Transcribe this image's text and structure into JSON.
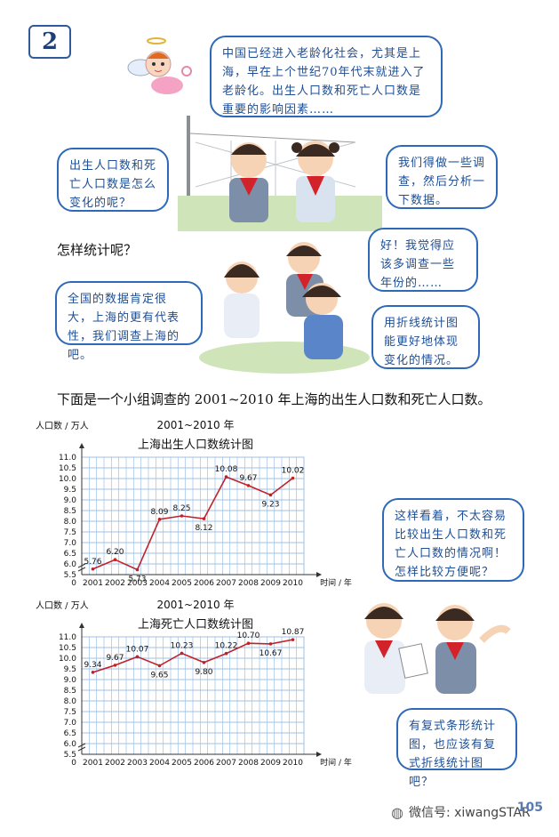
{
  "section_badge": "2",
  "bubbles": {
    "angel": "中国已经进入老龄化社会，尤其是上海，早在上个世纪70年代末就进入了老龄化。出生人口数和死亡人口数是重要的影响因素……",
    "boy_question": "出生人口数和死亡人口数是怎么变化的呢？",
    "girl_survey": "我们得做一些调查，然后分析一下数据。",
    "boy_years": "好！我觉得应该多调查一些年份的……",
    "girl_shanghai": "全国的数据肯定很大，上海的更有代表性，我们调查上海的吧。",
    "girl_line": "用折线统计图能更好地体现变化的情况。",
    "boy_compare": "这样看着，不太容易比较出生人口数和死亡人口数的情况啊！怎样比较方便呢？",
    "boy_compound": "有复式条形统计图，也应该有复式折线统计图吧？"
  },
  "question": "怎样统计呢？",
  "intro": "下面是一个小组调查的 2001~2010 年上海的出生人口数和死亡人口数。",
  "charts": [
    {
      "id": "birth",
      "title_line1": "2001~2010 年",
      "title_line2": "上海出生人口数统计图",
      "ylabel": "人口数 / 万人",
      "xlabel": "时间 / 年",
      "origin": "0",
      "chart_data": {
        "type": "line",
        "categories": [
          "2001",
          "2002",
          "2003",
          "2004",
          "2005",
          "2006",
          "2007",
          "2008",
          "2009",
          "2010"
        ],
        "values": [
          5.76,
          6.2,
          5.73,
          8.09,
          8.25,
          8.12,
          10.08,
          9.67,
          9.23,
          10.02
        ],
        "value_labels": [
          "5.76",
          "6.20",
          "5.73",
          "8.09",
          "8.25",
          "8.12",
          "10.08",
          "9.67",
          "9.23",
          "10.02"
        ],
        "yticks": [
          "5.5",
          "6.0",
          "6.5",
          "7.0",
          "7.5",
          "8.0",
          "8.5",
          "9.0",
          "9.5",
          "10.0",
          "10.5",
          "11.0"
        ],
        "ylim": [
          5.5,
          11.0
        ]
      }
    },
    {
      "id": "death",
      "title_line1": "2001~2010 年",
      "title_line2": "上海死亡人口数统计图",
      "ylabel": "人口数 / 万人",
      "xlabel": "时间 / 年",
      "origin": "0",
      "chart_data": {
        "type": "line",
        "categories": [
          "2001",
          "2002",
          "2003",
          "2004",
          "2005",
          "2006",
          "2007",
          "2008",
          "2009",
          "2010"
        ],
        "values": [
          9.34,
          9.67,
          10.07,
          9.65,
          10.23,
          9.8,
          10.22,
          10.7,
          10.67,
          10.87
        ],
        "value_labels": [
          "9.34",
          "9.67",
          "10.07",
          "9.65",
          "10.23",
          "9.80",
          "10.22",
          "10.70",
          "10.67",
          "10.87"
        ],
        "yticks": [
          "5.5",
          "6.0",
          "6.5",
          "7.0",
          "7.5",
          "8.0",
          "8.5",
          "9.0",
          "9.5",
          "10.0",
          "10.5",
          "11.0"
        ],
        "ylim": [
          5.5,
          11.0
        ]
      }
    }
  ],
  "watermark": "微信号: xiwangSTAR",
  "page_number": "105",
  "colors": {
    "line": "#c0222a",
    "grid": "#9fc0e6",
    "bubble_border": "#2e69b8",
    "bubble_text": "#1d4f96"
  }
}
